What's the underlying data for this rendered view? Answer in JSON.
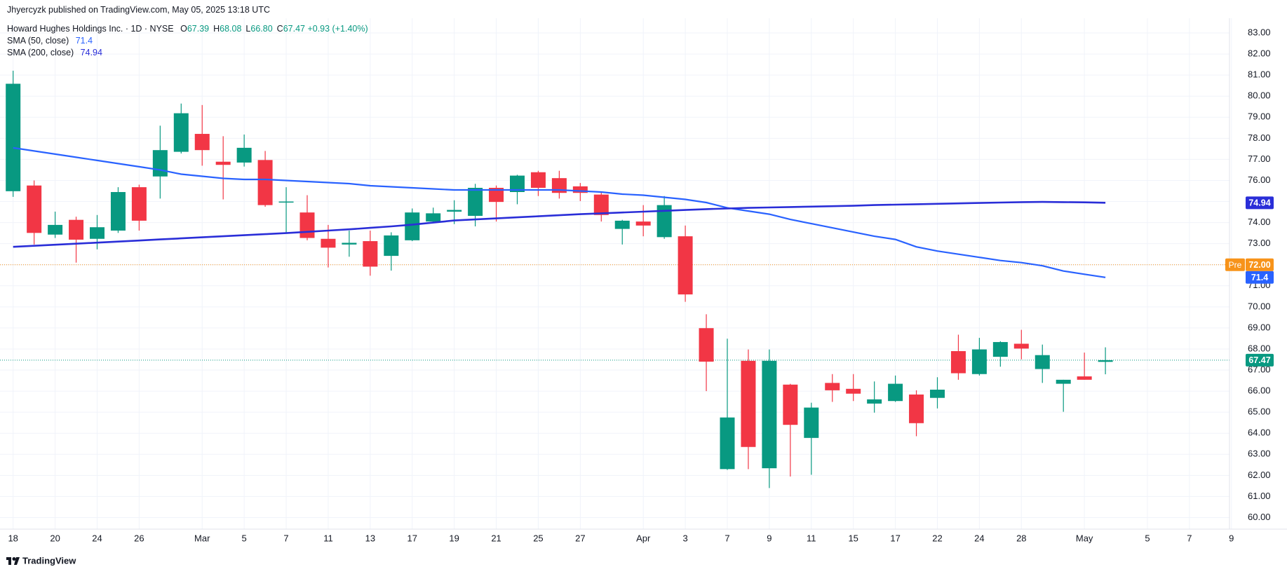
{
  "header": {
    "published": "Jhyercyzk published on TradingView.com, May 05, 2025 13:18 UTC"
  },
  "footer": {
    "brand": "TradingView"
  },
  "chart_data": {
    "type": "candlestick",
    "categories": [
      "18",
      null,
      "20",
      null,
      "24",
      null,
      "26",
      null,
      null,
      "Mar",
      null,
      "5",
      null,
      "7",
      null,
      "11",
      null,
      "13",
      null,
      "17",
      null,
      "19",
      null,
      "21",
      null,
      "25",
      null,
      "27",
      null,
      null,
      "Apr",
      null,
      "3",
      null,
      "7",
      null,
      "9",
      null,
      "11",
      null,
      "15",
      null,
      "17",
      null,
      "22",
      null,
      "24",
      null,
      "28",
      null,
      null,
      "May",
      null
    ],
    "open": [
      75.49,
      75.76,
      73.43,
      74.13,
      73.23,
      73.62,
      75.68,
      76.19,
      77.36,
      78.21,
      76.89,
      76.85,
      76.97,
      74.96,
      74.48,
      73.23,
      72.96,
      73.12,
      72.42,
      73.16,
      74.05,
      74.52,
      74.32,
      75.65,
      75.45,
      76.39,
      76.11,
      75.72,
      75.33,
      73.7,
      74.05,
      73.31,
      73.35,
      68.99,
      62.3,
      67.44,
      62.34,
      66.31,
      63.78,
      66.39,
      66.11,
      65.41,
      65.53,
      65.84,
      65.68,
      67.9,
      66.81,
      67.63,
      68.25,
      67.05,
      66.35,
      66.7,
      67.39
    ],
    "high": [
      81.21,
      76.0,
      74.52,
      74.28,
      74.36,
      75.68,
      75.8,
      78.6,
      79.65,
      79.58,
      78.1,
      78.18,
      77.4,
      75.68,
      75.3,
      73.89,
      73.62,
      73.62,
      73.54,
      74.67,
      74.71,
      75.06,
      75.84,
      75.76,
      76.27,
      76.46,
      76.46,
      75.88,
      75.45,
      74.13,
      74.83,
      75.26,
      73.86,
      69.65,
      68.49,
      67.98,
      67.98,
      66.35,
      65.45,
      66.81,
      66.81,
      66.46,
      66.74,
      66.04,
      66.66,
      68.68,
      68.53,
      68.37,
      68.91,
      68.21,
      66.54,
      67.83,
      68.08
    ],
    "low": [
      75.22,
      72.96,
      73.27,
      72.1,
      72.73,
      73.51,
      73.62,
      75.14,
      77.28,
      76.7,
      75.1,
      76.66,
      74.75,
      73.47,
      73.16,
      71.87,
      72.38,
      71.48,
      71.72,
      73.12,
      73.97,
      73.93,
      73.82,
      74.05,
      74.87,
      75.26,
      75.14,
      75.02,
      74.05,
      72.96,
      73.35,
      73.23,
      70.24,
      66.0,
      62.26,
      62.3,
      61.4,
      61.95,
      62.03,
      65.49,
      65.53,
      64.98,
      65.49,
      63.86,
      65.18,
      66.54,
      66.74,
      67.16,
      67.51,
      66.39,
      65.02,
      66.54,
      66.8
    ],
    "close": [
      80.59,
      73.51,
      73.89,
      73.19,
      73.78,
      75.45,
      74.09,
      77.44,
      79.19,
      77.44,
      76.74,
      77.55,
      74.83,
      75.0,
      73.27,
      72.81,
      73.04,
      71.91,
      73.39,
      74.48,
      74.44,
      74.6,
      75.65,
      74.98,
      76.23,
      75.65,
      75.41,
      75.41,
      74.36,
      74.09,
      73.86,
      74.83,
      70.59,
      67.4,
      64.75,
      63.35,
      67.44,
      64.4,
      65.22,
      66.04,
      65.88,
      65.61,
      66.35,
      64.48,
      66.07,
      66.85,
      67.98,
      68.33,
      68.02,
      67.71,
      66.54,
      66.54,
      67.47
    ],
    "up_color": "#089981",
    "down_color": "#f23645",
    "series": [
      {
        "name": "SMA (50, close)",
        "color": "#2962ff",
        "last_label": "71.4",
        "values": [
          77.55,
          77.4,
          77.25,
          77.1,
          76.95,
          76.8,
          76.65,
          76.5,
          76.3,
          76.2,
          76.1,
          76.05,
          76.05,
          76.0,
          75.95,
          75.9,
          75.85,
          75.75,
          75.7,
          75.65,
          75.6,
          75.55,
          75.55,
          75.55,
          75.55,
          75.55,
          75.55,
          75.5,
          75.45,
          75.35,
          75.3,
          75.2,
          75.1,
          74.95,
          74.7,
          74.55,
          74.4,
          74.15,
          73.95,
          73.75,
          73.55,
          73.35,
          73.2,
          72.85,
          72.65,
          72.5,
          72.35,
          72.2,
          72.1,
          71.95,
          71.7,
          71.55,
          71.4
        ]
      },
      {
        "name": "SMA (200, close)",
        "color": "#2a2ed8",
        "last_label": "74.94",
        "values": [
          72.85,
          72.9,
          72.95,
          73.0,
          73.05,
          73.1,
          73.15,
          73.2,
          73.25,
          73.3,
          73.35,
          73.4,
          73.45,
          73.5,
          73.56,
          73.62,
          73.68,
          73.75,
          73.82,
          73.9,
          74.0,
          74.1,
          74.15,
          74.2,
          74.25,
          74.3,
          74.35,
          74.4,
          74.44,
          74.48,
          74.52,
          74.56,
          74.6,
          74.64,
          74.67,
          74.7,
          74.72,
          74.74,
          74.76,
          74.78,
          74.8,
          74.83,
          74.85,
          74.87,
          74.89,
          74.91,
          74.93,
          74.95,
          74.97,
          74.98,
          74.97,
          74.96,
          74.94
        ]
      }
    ],
    "ylim": [
      59.45,
      83.7
    ],
    "yticks": [
      {
        "value": 60,
        "label": "60.00"
      },
      {
        "value": 61,
        "label": "61.00"
      },
      {
        "value": 62,
        "label": "62.00"
      },
      {
        "value": 63,
        "label": "63.00"
      },
      {
        "value": 64,
        "label": "64.00"
      },
      {
        "value": 65,
        "label": "65.00"
      },
      {
        "value": 66,
        "label": "66.00"
      },
      {
        "value": 67,
        "label": "67.00"
      },
      {
        "value": 68,
        "label": "68.00"
      },
      {
        "value": 69,
        "label": "69.00"
      },
      {
        "value": 70,
        "label": "70.00"
      },
      {
        "value": 71,
        "label": "71.00"
      },
      {
        "value": 72,
        "label": "72.00"
      },
      {
        "value": 73,
        "label": "73.00"
      },
      {
        "value": 74,
        "label": "74.00"
      },
      {
        "value": 75,
        "label": "75.00"
      },
      {
        "value": 76,
        "label": "76.00"
      },
      {
        "value": 77,
        "label": "77.00"
      },
      {
        "value": 78,
        "label": "78.00"
      },
      {
        "value": 79,
        "label": "79.00"
      },
      {
        "value": 80,
        "label": "80.00"
      },
      {
        "value": 81,
        "label": "81.00"
      },
      {
        "value": 82,
        "label": "82.00"
      },
      {
        "value": 83,
        "label": "83.00"
      }
    ],
    "grid": true,
    "x_future_labels": [
      "5",
      "7",
      "9"
    ],
    "price_line": {
      "value": 67.47,
      "label": "67.47",
      "color": "#089981"
    },
    "premarket": {
      "name": "Pre",
      "value": 72,
      "label": "72.00",
      "color": "#f7931a"
    },
    "legend": {
      "symbol": "Howard Hughes Holdings Inc. · 1D · NYSE",
      "ohlc": [
        {
          "key": "O",
          "value": "67.39"
        },
        {
          "key": "H",
          "value": "68.08"
        },
        {
          "key": "L",
          "value": "66.80"
        },
        {
          "key": "C",
          "value": "67.47"
        }
      ],
      "change": "+0.93 (+1.40%)"
    }
  }
}
